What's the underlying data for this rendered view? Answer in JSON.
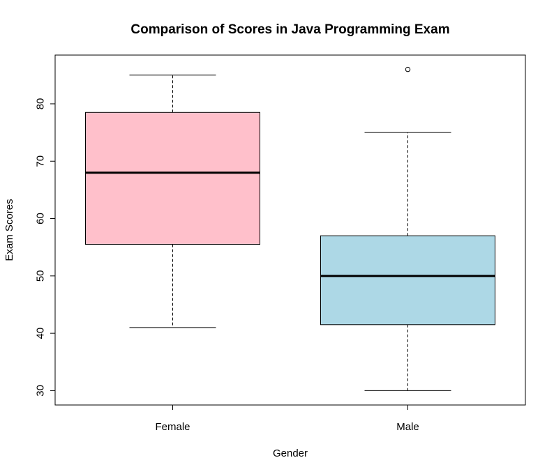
{
  "chart_data": {
    "type": "boxplot",
    "title": "Comparison of Scores in Java Programming Exam",
    "xlabel": "Gender",
    "ylabel": "Exam Scores",
    "ylim": [
      27.5,
      88.5
    ],
    "yticks": [
      30,
      40,
      50,
      60,
      70,
      80
    ],
    "grid": false,
    "legend": "none",
    "categories": [
      "Female",
      "Male"
    ],
    "boxes": [
      {
        "name": "Female",
        "whisker_low": 41,
        "q1": 55.5,
        "median": 68,
        "q3": 78.5,
        "whisker_high": 85,
        "outliers": [],
        "color": "#FFC0CB"
      },
      {
        "name": "Male",
        "whisker_low": 30,
        "q1": 41.5,
        "median": 50,
        "q3": 57,
        "whisker_high": 75,
        "outliers": [
          86
        ],
        "color": "#ADD8E6"
      }
    ]
  }
}
